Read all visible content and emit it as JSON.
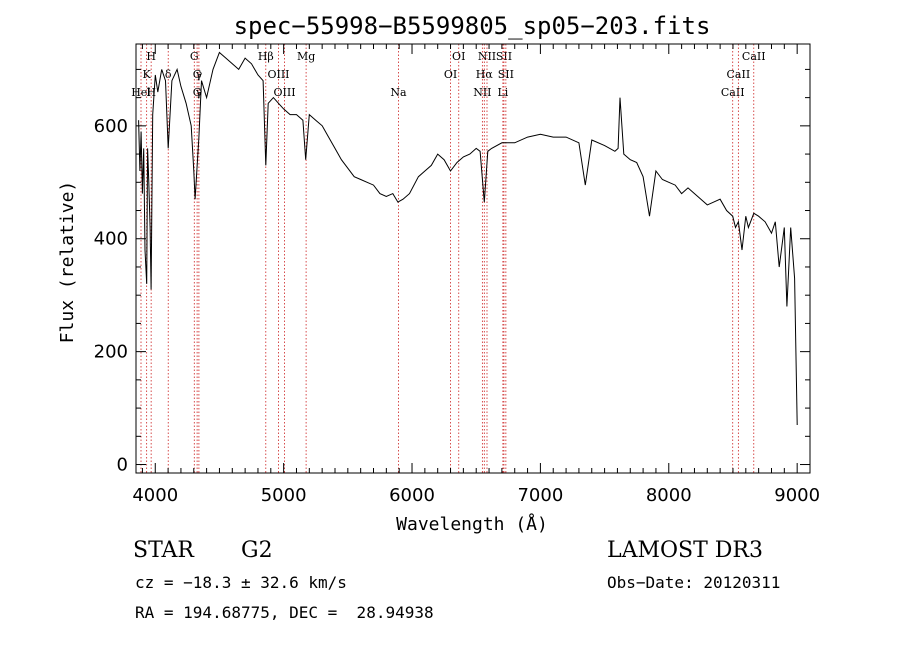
{
  "info": {
    "object_type": "STAR",
    "subclass": "G2",
    "survey": "LAMOST DR3",
    "redshift": "cz = −18.3 ± 32.6 km/s",
    "obs_date": "Obs−Date: 20120311",
    "coords": "RA = 194.68775, DEC =  28.94938"
  },
  "colors": {
    "spectrum": "#000000",
    "line_marker": "#cc2222",
    "axis": "#000000"
  },
  "chart_data": {
    "type": "line",
    "title": "spec−55998−B5599805_sp05−203.fits",
    "xlabel": "Wavelength (Å)",
    "ylabel": "Flux (relative)",
    "xlim": [
      3850,
      9100
    ],
    "ylim": [
      -15,
      745
    ],
    "x_ticks": [
      4000,
      5000,
      6000,
      7000,
      8000,
      9000
    ],
    "y_ticks": [
      0,
      200,
      400,
      600
    ],
    "grid": false,
    "series": [
      {
        "x": [
          3870,
          3880,
          3890,
          3900,
          3910,
          3920,
          3933,
          3940,
          3950,
          3960,
          3968,
          3980,
          4000,
          4020,
          4050,
          4080,
          4101,
          4130,
          4170,
          4200,
          4240,
          4280,
          4300,
          4310,
          4340,
          4360,
          4400,
          4450,
          4500,
          4550,
          4600,
          4650,
          4700,
          4750,
          4800,
          4840,
          4861,
          4880,
          4920,
          4960,
          5000,
          5050,
          5100,
          5150,
          5172,
          5200,
          5250,
          5300,
          5350,
          5400,
          5450,
          5500,
          5550,
          5600,
          5650,
          5700,
          5750,
          5800,
          5850,
          5890,
          5930,
          5980,
          6050,
          6100,
          6150,
          6200,
          6250,
          6300,
          6350,
          6400,
          6450,
          6500,
          6530,
          6563,
          6590,
          6620,
          6700,
          6800,
          6900,
          7000,
          7100,
          7200,
          7300,
          7350,
          7400,
          7500,
          7580,
          7605,
          7620,
          7650,
          7700,
          7750,
          7800,
          7850,
          7900,
          7950,
          8000,
          8050,
          8100,
          8150,
          8200,
          8250,
          8300,
          8350,
          8400,
          8450,
          8498,
          8520,
          8542,
          8570,
          8600,
          8620,
          8662,
          8700,
          8750,
          8800,
          8830,
          8860,
          8900,
          8920,
          8950,
          8980,
          9000
        ],
        "y": [
          610,
          520,
          590,
          480,
          560,
          380,
          320,
          560,
          500,
          420,
          310,
          620,
          690,
          660,
          700,
          680,
          560,
          680,
          700,
          670,
          640,
          600,
          520,
          470,
          580,
          680,
          650,
          700,
          730,
          720,
          710,
          700,
          720,
          710,
          690,
          680,
          530,
          640,
          650,
          640,
          630,
          620,
          620,
          610,
          540,
          620,
          610,
          600,
          580,
          560,
          540,
          525,
          510,
          505,
          500,
          495,
          480,
          475,
          480,
          465,
          470,
          480,
          510,
          520,
          530,
          550,
          540,
          520,
          535,
          545,
          550,
          560,
          555,
          465,
          555,
          560,
          570,
          570,
          580,
          585,
          580,
          580,
          570,
          495,
          575,
          565,
          555,
          560,
          650,
          550,
          540,
          535,
          510,
          440,
          520,
          505,
          500,
          495,
          480,
          490,
          480,
          470,
          460,
          465,
          470,
          450,
          440,
          420,
          430,
          380,
          440,
          420,
          445,
          440,
          430,
          410,
          430,
          350,
          420,
          280,
          420,
          330,
          70
        ],
        "color": "#000000"
      }
    ],
    "line_markers": [
      {
        "label": "Hel",
        "wavelength": 3889,
        "row": 3
      },
      {
        "label": "K",
        "wavelength": 3933,
        "row": 2
      },
      {
        "label": "H",
        "wavelength": 3968,
        "row": 1
      },
      {
        "label": "H",
        "wavelength": 3968,
        "row": 3
      },
      {
        "label": "δ",
        "wavelength": 4101,
        "row": 2
      },
      {
        "label": "G",
        "wavelength": 4304,
        "row": 1
      },
      {
        "label": "G",
        "wavelength": 4326,
        "row": 2
      },
      {
        "label": "G",
        "wavelength": 4326,
        "row": 3
      },
      {
        "label": "γ",
        "wavelength": 4340,
        "row": 2
      },
      {
        "label": "γ",
        "wavelength": 4340,
        "row": 3
      },
      {
        "label": "Hβ",
        "wavelength": 4861,
        "row": 1
      },
      {
        "label": "OIII",
        "wavelength": 4960,
        "row": 2
      },
      {
        "label": "OIII",
        "wavelength": 5007,
        "row": 3
      },
      {
        "label": "Mg",
        "wavelength": 5175,
        "row": 1
      },
      {
        "label": "Na",
        "wavelength": 5894,
        "row": 3
      },
      {
        "label": "OI",
        "wavelength": 6300,
        "row": 2
      },
      {
        "label": "OI",
        "wavelength": 6364,
        "row": 1
      },
      {
        "label": "NII",
        "wavelength": 6548,
        "row": 3
      },
      {
        "label": "NII",
        "wavelength": 6584,
        "row": 1
      },
      {
        "label": "Hα",
        "wavelength": 6563,
        "row": 2
      },
      {
        "label": "SII",
        "wavelength": 6716,
        "row": 1
      },
      {
        "label": "SII",
        "wavelength": 6731,
        "row": 2
      },
      {
        "label": "Li",
        "wavelength": 6708,
        "row": 3
      },
      {
        "label": "CaII",
        "wavelength": 8498,
        "row": 3
      },
      {
        "label": "CaII",
        "wavelength": 8542,
        "row": 2
      },
      {
        "label": "CaII",
        "wavelength": 8662,
        "row": 1
      }
    ]
  }
}
